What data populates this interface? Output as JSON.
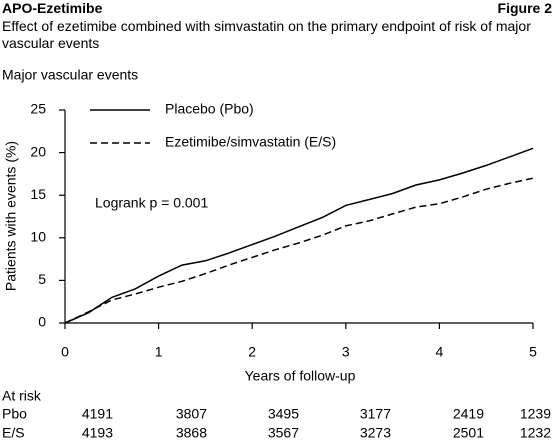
{
  "header": {
    "title": "APO-Ezetimibe",
    "figure": "Figure 2",
    "subtitle": "Effect of ezetimibe combined with simvastatin on the primary endpoint of risk of major vascular events"
  },
  "chart_data": {
    "type": "line",
    "title": "Major vascular events",
    "xlabel": "Years of follow-up",
    "ylabel": "Patients with events (%)",
    "x": [
      0,
      0.25,
      0.5,
      0.75,
      1,
      1.25,
      1.5,
      1.75,
      2,
      2.25,
      2.5,
      2.75,
      3,
      3.25,
      3.5,
      3.75,
      4,
      4.25,
      4.5,
      4.75,
      5
    ],
    "series": [
      {
        "name": "Placebo (Pbo)",
        "color": "#000000",
        "dashed": false,
        "values": [
          0,
          1.2,
          3,
          4,
          5.5,
          6.8,
          7.3,
          8.2,
          9.2,
          10.2,
          11.3,
          12.4,
          13.8,
          14.5,
          15.2,
          16.2,
          16.8,
          17.6,
          18.5,
          19.5,
          20.5
        ]
      },
      {
        "name": "Ezetimibe/simvastatin (E/S)",
        "color": "#000000",
        "dashed": true,
        "values": [
          0,
          1.3,
          2.7,
          3.4,
          4.2,
          4.9,
          5.8,
          6.8,
          7.7,
          8.6,
          9.4,
          10.3,
          11.4,
          12.0,
          12.8,
          13.6,
          14.0,
          14.8,
          15.7,
          16.4,
          17.0
        ]
      }
    ],
    "xlim": [
      0,
      5
    ],
    "xticks": [
      0,
      1,
      2,
      3,
      4,
      5
    ],
    "ylim": [
      0,
      25
    ],
    "yticks": [
      0,
      5,
      10,
      15,
      20,
      25
    ],
    "annotation": "Logrank p = 0.001",
    "at_risk": {
      "label": "At risk",
      "rows": [
        {
          "name": "Pbo",
          "values": [
            4191,
            3807,
            3495,
            3177,
            2419,
            1239
          ]
        },
        {
          "name": "E/S",
          "values": [
            4193,
            3868,
            3567,
            3273,
            2501,
            1232
          ]
        }
      ]
    }
  }
}
